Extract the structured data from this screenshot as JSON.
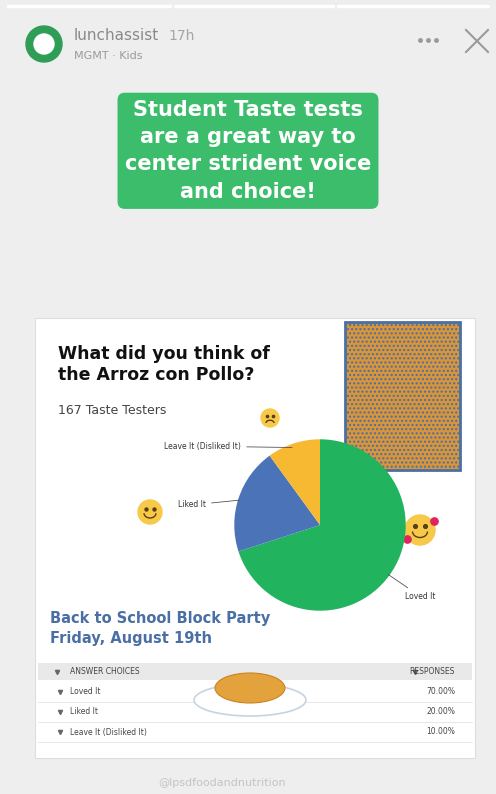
{
  "story": {
    "account": "lunchassist",
    "time": "17h",
    "audio": "MGMT · Kids",
    "caption": "Student Taste tests are a great way to center strident voice and choice!",
    "credit": "@lpsdfoodandnutrition"
  },
  "chart_data": {
    "type": "pie",
    "title": "What did you think of the Arroz con Pollo?",
    "subtitle": "167 Taste Testers",
    "categories": [
      "Loved It",
      "Liked It",
      "Leave It (Disliked It)"
    ],
    "values": [
      70,
      20,
      10
    ],
    "value_labels": [
      "70.00%",
      "20.00%",
      "10.00%"
    ],
    "colors": [
      "#22b35e",
      "#4a73b8",
      "#f6b931"
    ],
    "annotations": [
      "Back to School Block Party",
      "Friday, August 19th"
    ]
  },
  "table": {
    "header": [
      "ANSWER CHOICES",
      "RESPONSES"
    ]
  }
}
